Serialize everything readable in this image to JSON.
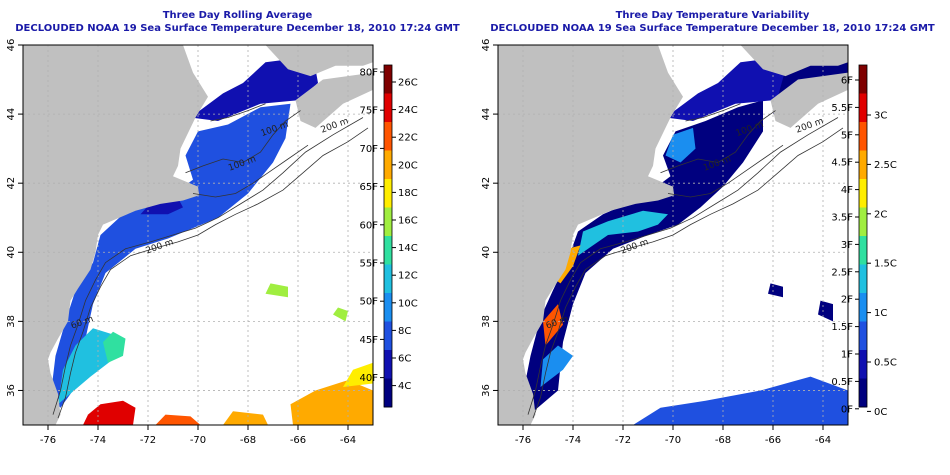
{
  "panels": [
    {
      "title": "Three Day Rolling Average",
      "subtitle": "DECLOUDED NOAA 19 Sea Surface Temperature December 18, 2010 17:24 GMT",
      "colorbar": {
        "type": "temperature",
        "left_labels": [
          "80F",
          "75F",
          "70F",
          "65F",
          "60F",
          "55F",
          "50F",
          "45F",
          "40F"
        ],
        "inner_labels": [
          "26C",
          "24C",
          "22C",
          "20C",
          "18C",
          "16C",
          "14C",
          "12C",
          "10C",
          "8C",
          "6C",
          "4C"
        ],
        "colors": [
          "#7f0000",
          "#e00000",
          "#ff5500",
          "#ffaa00",
          "#ffee00",
          "#a0ee40",
          "#30e0a0",
          "#20c0e0",
          "#1a8ef0",
          "#1f50e0",
          "#1010b0",
          "#00007f"
        ]
      }
    },
    {
      "title": "Three Day Temperature Variability",
      "subtitle": "DECLOUDED NOAA 19 Sea Surface Temperature December 18, 2010 17:24 GMT",
      "colorbar": {
        "type": "variability",
        "left_labels": [
          "6F",
          "5.5F",
          "5F",
          "4.5F",
          "4F",
          "3.5F",
          "3F",
          "2.5F",
          "2F",
          "1.5F",
          "1F",
          "0.5F",
          "0F"
        ],
        "inner_labels": [
          "3C",
          "2.5C",
          "2C",
          "1.5C",
          "1C",
          "0.5C",
          "0C"
        ],
        "colors": [
          "#7f0000",
          "#e00000",
          "#ff5500",
          "#ffaa00",
          "#ffee00",
          "#a0ee40",
          "#30e0a0",
          "#20c0e0",
          "#1a8ef0",
          "#1f50e0",
          "#1010b0",
          "#00007f"
        ]
      }
    }
  ],
  "map": {
    "x_ticks": [
      "-76",
      "-74",
      "-72",
      "-70",
      "-68",
      "-66",
      "-64"
    ],
    "y_ticks": [
      "36",
      "38",
      "40",
      "42",
      "44",
      "46"
    ],
    "contour_labels": [
      "100 m",
      "100 m",
      "200 m",
      "200 m",
      "60 m"
    ],
    "colors": {
      "land": "#c0c0c0",
      "ocean_nodata": "#ffffff",
      "contour": "#333333",
      "grid": "#b0b0b0"
    }
  }
}
